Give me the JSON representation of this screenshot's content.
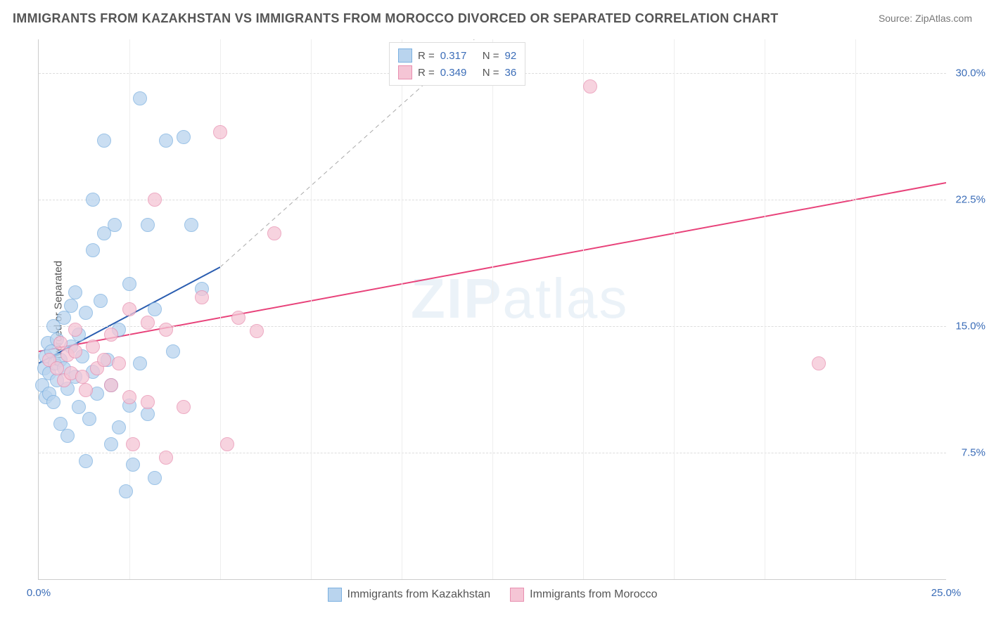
{
  "title": "IMMIGRANTS FROM KAZAKHSTAN VS IMMIGRANTS FROM MOROCCO DIVORCED OR SEPARATED CORRELATION CHART",
  "source": "Source: ZipAtlas.com",
  "ylabel": "Divorced or Separated",
  "watermark_prefix": "ZIP",
  "watermark_suffix": "atlas",
  "chart": {
    "type": "scatter",
    "xlim": [
      0,
      25
    ],
    "ylim": [
      0,
      32
    ],
    "xticks": [
      0,
      25
    ],
    "xtick_labels": [
      "0.0%",
      "25.0%"
    ],
    "yticks": [
      7.5,
      15.0,
      22.5,
      30.0
    ],
    "ytick_labels": [
      "7.5%",
      "15.0%",
      "22.5%",
      "30.0%"
    ],
    "ytick_color": "#3b6db8",
    "xtick_color": "#3b6db8",
    "vgrid": [
      2.5,
      5,
      7.5,
      10,
      12.5,
      15,
      17.5,
      20,
      22.5
    ],
    "grid_color": "#dddddd",
    "axis_color": "#cccccc",
    "marker_radius": 9,
    "series": [
      {
        "name": "Immigrants from Kazakhstan",
        "color_fill": "#b9d4ee",
        "color_stroke": "#7bb0e0",
        "R": "0.317",
        "N": "92",
        "trend": {
          "x1": 0,
          "y1": 12.8,
          "x2": 5,
          "y2": 18.5,
          "extrapolate_x": 12.0,
          "extrapolate_y": 32.0,
          "color": "#2a5db0",
          "width": 2
        },
        "points": [
          [
            0.1,
            11.5
          ],
          [
            0.15,
            12.5
          ],
          [
            0.2,
            13.2
          ],
          [
            0.2,
            10.8
          ],
          [
            0.25,
            14.0
          ],
          [
            0.3,
            11.0
          ],
          [
            0.3,
            12.2
          ],
          [
            0.35,
            13.5
          ],
          [
            0.4,
            10.5
          ],
          [
            0.4,
            15.0
          ],
          [
            0.45,
            12.8
          ],
          [
            0.5,
            11.8
          ],
          [
            0.5,
            14.2
          ],
          [
            0.6,
            9.2
          ],
          [
            0.6,
            13.0
          ],
          [
            0.7,
            12.5
          ],
          [
            0.7,
            15.5
          ],
          [
            0.8,
            11.3
          ],
          [
            0.8,
            8.5
          ],
          [
            0.9,
            13.8
          ],
          [
            0.9,
            16.2
          ],
          [
            1.0,
            12.0
          ],
          [
            1.0,
            17.0
          ],
          [
            1.1,
            10.2
          ],
          [
            1.1,
            14.5
          ],
          [
            1.2,
            13.2
          ],
          [
            1.3,
            7.0
          ],
          [
            1.3,
            15.8
          ],
          [
            1.4,
            9.5
          ],
          [
            1.5,
            19.5
          ],
          [
            1.5,
            12.3
          ],
          [
            1.5,
            22.5
          ],
          [
            1.6,
            11.0
          ],
          [
            1.7,
            16.5
          ],
          [
            1.8,
            20.5
          ],
          [
            1.8,
            26.0
          ],
          [
            1.9,
            13.0
          ],
          [
            2.0,
            8.0
          ],
          [
            2.0,
            11.5
          ],
          [
            2.1,
            21.0
          ],
          [
            2.2,
            9.0
          ],
          [
            2.2,
            14.8
          ],
          [
            2.4,
            5.2
          ],
          [
            2.5,
            10.3
          ],
          [
            2.5,
            17.5
          ],
          [
            2.6,
            6.8
          ],
          [
            2.8,
            12.8
          ],
          [
            2.8,
            28.5
          ],
          [
            3.0,
            9.8
          ],
          [
            3.0,
            21.0
          ],
          [
            3.2,
            6.0
          ],
          [
            3.2,
            16.0
          ],
          [
            3.5,
            26.0
          ],
          [
            3.7,
            13.5
          ],
          [
            4.0,
            26.2
          ],
          [
            4.2,
            21.0
          ],
          [
            4.5,
            17.2
          ]
        ]
      },
      {
        "name": "Immigrants from Morocco",
        "color_fill": "#f5c5d5",
        "color_stroke": "#e88fb0",
        "R": "0.349",
        "N": "36",
        "trend": {
          "x1": 0,
          "y1": 13.5,
          "x2": 25,
          "y2": 23.5,
          "color": "#e8427a",
          "width": 2
        },
        "points": [
          [
            0.3,
            13.0
          ],
          [
            0.5,
            12.5
          ],
          [
            0.6,
            14.0
          ],
          [
            0.7,
            11.8
          ],
          [
            0.8,
            13.3
          ],
          [
            0.9,
            12.2
          ],
          [
            1.0,
            14.8
          ],
          [
            1.0,
            13.5
          ],
          [
            1.2,
            12.0
          ],
          [
            1.3,
            11.2
          ],
          [
            1.5,
            13.8
          ],
          [
            1.6,
            12.5
          ],
          [
            1.8,
            13.0
          ],
          [
            2.0,
            14.5
          ],
          [
            2.0,
            11.5
          ],
          [
            2.2,
            12.8
          ],
          [
            2.5,
            10.8
          ],
          [
            2.5,
            16.0
          ],
          [
            2.6,
            8.0
          ],
          [
            3.0,
            10.5
          ],
          [
            3.0,
            15.2
          ],
          [
            3.2,
            22.5
          ],
          [
            3.5,
            14.8
          ],
          [
            3.5,
            7.2
          ],
          [
            4.0,
            10.2
          ],
          [
            4.5,
            16.7
          ],
          [
            5.0,
            26.5
          ],
          [
            5.2,
            8.0
          ],
          [
            5.5,
            15.5
          ],
          [
            6.0,
            14.7
          ],
          [
            6.5,
            20.5
          ],
          [
            15.2,
            29.2
          ],
          [
            21.5,
            12.8
          ]
        ]
      }
    ],
    "legend_stats": {
      "r_label": "R =",
      "n_label": "N =",
      "value_color": "#3b6db8",
      "label_color": "#555555"
    }
  }
}
